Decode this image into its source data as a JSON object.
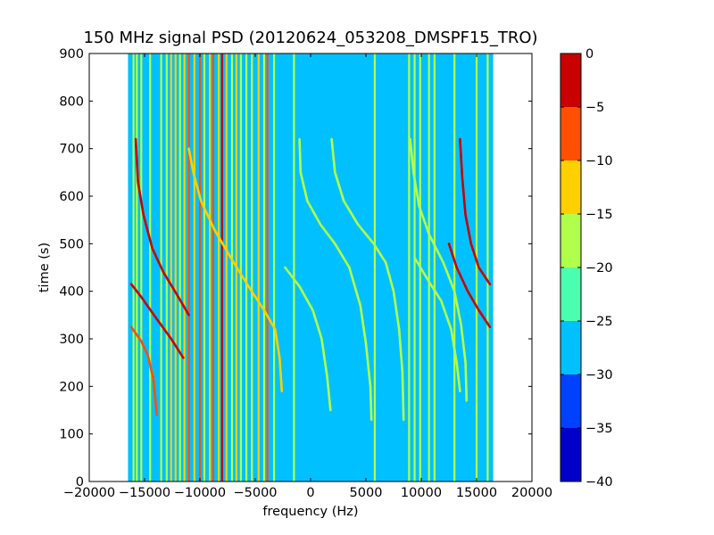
{
  "chart_data": {
    "type": "heatmap",
    "title": "150 MHz signal PSD (20120624_053208_DMSPF15_TRO)",
    "xlabel": "frequency (Hz)",
    "ylabel": "time (s)",
    "xlim": [
      -20000,
      20000
    ],
    "ylim": [
      0,
      900
    ],
    "x_ticks": [
      -20000,
      -15000,
      -10000,
      -5000,
      0,
      5000,
      10000,
      15000,
      20000
    ],
    "y_ticks": [
      0,
      100,
      200,
      300,
      400,
      500,
      600,
      700,
      800,
      900
    ],
    "data_extent_x": [
      -16500,
      16500
    ],
    "data_extent_y": [
      0,
      900
    ],
    "colorbar": {
      "levels": [
        -40,
        -35,
        -30,
        -25,
        -20,
        -15,
        -10,
        -5,
        0
      ],
      "tick_labels": [
        "−40",
        "−35",
        "−30",
        "−25",
        "−20",
        "−15",
        "−10",
        "−5",
        "0"
      ],
      "colors": [
        "#0000c8",
        "#0040ff",
        "#00c0ff",
        "#4cffb0",
        "#b0ff4c",
        "#ffd000",
        "#ff5000",
        "#c80000"
      ]
    },
    "background_level_color": "#00c0ff",
    "vertical_lines": [
      {
        "x": -16000,
        "level": -20
      },
      {
        "x": -15700,
        "level": -20
      },
      {
        "x": -15300,
        "level": -20
      },
      {
        "x": -14500,
        "level": -20
      },
      {
        "x": -13500,
        "level": -20
      },
      {
        "x": -13000,
        "level": -20
      },
      {
        "x": -12600,
        "level": -15
      },
      {
        "x": -12200,
        "level": -15
      },
      {
        "x": -11800,
        "level": -20
      },
      {
        "x": -11400,
        "level": -15
      },
      {
        "x": -11000,
        "level": -10
      },
      {
        "x": -10500,
        "level": -15
      },
      {
        "x": -10000,
        "level": -10
      },
      {
        "x": -9600,
        "level": -20
      },
      {
        "x": -9100,
        "level": -15
      },
      {
        "x": -8800,
        "level": -10
      },
      {
        "x": -8300,
        "level": -15
      },
      {
        "x": -8000,
        "level": -5
      },
      {
        "x": -7600,
        "level": -15
      },
      {
        "x": -7100,
        "level": -20
      },
      {
        "x": -6700,
        "level": -15
      },
      {
        "x": -6300,
        "level": -20
      },
      {
        "x": -5800,
        "level": -20
      },
      {
        "x": -5300,
        "level": -20
      },
      {
        "x": -4700,
        "level": -15
      },
      {
        "x": -4200,
        "level": -20
      },
      {
        "x": -3900,
        "level": -10
      },
      {
        "x": -3300,
        "level": -20
      },
      {
        "x": -1500,
        "level": -20
      },
      {
        "x": 5800,
        "level": -20
      },
      {
        "x": 8900,
        "level": -20
      },
      {
        "x": 9400,
        "level": -20
      },
      {
        "x": 9900,
        "level": -20
      },
      {
        "x": 10700,
        "level": -20
      },
      {
        "x": 11200,
        "level": -20
      },
      {
        "x": 13000,
        "level": -20
      },
      {
        "x": 15000,
        "level": -20
      },
      {
        "x": 16000,
        "level": -20
      }
    ],
    "curves": [
      {
        "level": -5,
        "points": [
          [
            -16200,
            415
          ],
          [
            -15200,
            385
          ],
          [
            -14000,
            345
          ],
          [
            -12600,
            300
          ],
          [
            -11500,
            260
          ]
        ]
      },
      {
        "level": -10,
        "points": [
          [
            -16200,
            325
          ],
          [
            -15300,
            295
          ],
          [
            -14700,
            265
          ],
          [
            -14200,
            215
          ],
          [
            -13900,
            140
          ]
        ]
      },
      {
        "level": -5,
        "points": [
          [
            -15800,
            720
          ],
          [
            -15600,
            630
          ],
          [
            -15100,
            560
          ],
          [
            -14300,
            490
          ],
          [
            -13300,
            440
          ],
          [
            -12000,
            390
          ],
          [
            -11000,
            350
          ]
        ]
      },
      {
        "level": -15,
        "points": [
          [
            -11000,
            700
          ],
          [
            -10600,
            650
          ],
          [
            -9900,
            590
          ],
          [
            -8700,
            530
          ],
          [
            -7200,
            470
          ],
          [
            -5600,
            410
          ],
          [
            -4200,
            360
          ],
          [
            -3200,
            320
          ],
          [
            -2800,
            260
          ],
          [
            -2600,
            190
          ]
        ]
      },
      {
        "level": -20,
        "points": [
          [
            -1000,
            720
          ],
          [
            -900,
            650
          ],
          [
            -300,
            590
          ],
          [
            900,
            540
          ],
          [
            2200,
            500
          ],
          [
            3500,
            450
          ],
          [
            4500,
            370
          ],
          [
            5000,
            290
          ],
          [
            5400,
            200
          ],
          [
            5500,
            130
          ]
        ]
      },
      {
        "level": -20,
        "points": [
          [
            1900,
            720
          ],
          [
            2200,
            650
          ],
          [
            3000,
            590
          ],
          [
            4300,
            540
          ],
          [
            5700,
            500
          ],
          [
            6800,
            460
          ],
          [
            7500,
            400
          ],
          [
            8000,
            320
          ],
          [
            8300,
            230
          ],
          [
            8400,
            130
          ]
        ]
      },
      {
        "level": -20,
        "points": [
          [
            -2300,
            450
          ],
          [
            -1000,
            410
          ],
          [
            200,
            360
          ],
          [
            1000,
            300
          ],
          [
            1500,
            220
          ],
          [
            1800,
            150
          ]
        ]
      },
      {
        "level": -20,
        "points": [
          [
            9000,
            720
          ],
          [
            9300,
            650
          ],
          [
            9800,
            580
          ],
          [
            10700,
            520
          ],
          [
            12000,
            460
          ],
          [
            13000,
            400
          ],
          [
            13600,
            330
          ],
          [
            14000,
            250
          ],
          [
            14100,
            170
          ]
        ]
      },
      {
        "level": -20,
        "points": [
          [
            9400,
            470
          ],
          [
            10700,
            420
          ],
          [
            11800,
            380
          ],
          [
            12700,
            320
          ],
          [
            13200,
            250
          ],
          [
            13500,
            190
          ]
        ]
      },
      {
        "level": -5,
        "points": [
          [
            13500,
            720
          ],
          [
            13700,
            640
          ],
          [
            14000,
            560
          ],
          [
            14500,
            500
          ],
          [
            15200,
            450
          ],
          [
            16200,
            415
          ]
        ]
      },
      {
        "level": -5,
        "points": [
          [
            12500,
            500
          ],
          [
            13200,
            450
          ],
          [
            14200,
            400
          ],
          [
            15200,
            360
          ],
          [
            16200,
            325
          ]
        ]
      }
    ]
  }
}
